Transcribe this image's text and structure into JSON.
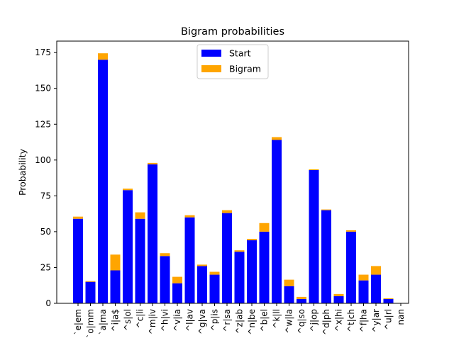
{
  "chart_data": {
    "type": "bar",
    "stacked": true,
    "title": "Bigram probabilities",
    "xlabel": "",
    "ylabel": "Probability",
    "ylim": [
      0,
      183
    ],
    "yticks": [
      0,
      25,
      50,
      75,
      100,
      125,
      150,
      175
    ],
    "grid": false,
    "legend_position": "top-center",
    "categories": [
      "`e|em",
      "`o|mm",
      "`a|ma",
      "^i|a$",
      "^s|ol",
      "^c|li",
      "^m|iv",
      "^h|vi",
      "^v|ia",
      "^l|av",
      "^g|va",
      "^p|is",
      "^r|sa",
      "^z|ab",
      "^n|be",
      "^b|el",
      "^k|ll",
      "^w|la",
      "^q|so",
      "^j|op",
      "^d|ph",
      "^x|hi",
      "^t|ch",
      "^f|ha",
      "^y|ar",
      "^u|rl",
      "nan"
    ],
    "series": [
      {
        "name": "Start",
        "color": "#0000ff",
        "values": [
          59,
          15,
          170,
          23,
          79,
          59,
          97,
          33,
          14,
          60,
          26,
          20,
          63,
          36,
          44,
          50,
          114,
          12,
          3,
          93,
          65,
          5,
          50,
          16,
          20,
          3,
          0
        ]
      },
      {
        "name": "Bigram",
        "color": "#ffa500",
        "values": [
          1.5,
          0.5,
          4.5,
          11,
          1,
          4.5,
          1,
          2,
          4.5,
          1.5,
          1,
          2,
          2,
          1,
          1,
          6,
          2,
          4.5,
          1.5,
          0.5,
          0.5,
          1.5,
          1,
          4,
          6,
          0.5,
          0
        ]
      }
    ]
  }
}
